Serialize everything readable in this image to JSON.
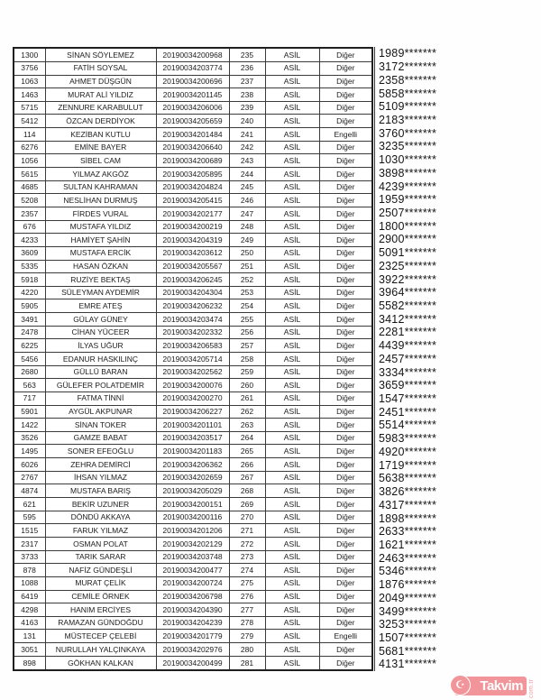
{
  "table": {
    "column_keys": [
      "order_no",
      "name",
      "application_no",
      "rank",
      "list_type",
      "category",
      "masked_id"
    ],
    "rows": [
      [
        "1300",
        "SİNAN SÖYLEMEZ",
        "20190034200968",
        "235",
        "ASİL",
        "Diğer",
        "1989*******"
      ],
      [
        "3756",
        "FATİH SOYSAL",
        "20190034203774",
        "236",
        "ASİL",
        "Diğer",
        "3172*******"
      ],
      [
        "1063",
        "AHMET DÜŞGÜN",
        "20190034200696",
        "237",
        "ASİL",
        "Diğer",
        "2358*******"
      ],
      [
        "1463",
        "MURAT ALİ YILDIZ",
        "20190034201145",
        "238",
        "ASİL",
        "Diğer",
        "5858*******"
      ],
      [
        "5715",
        "ZENNURE KARABULUT",
        "20190034206006",
        "239",
        "ASİL",
        "Diğer",
        "5109*******"
      ],
      [
        "5412",
        "ÖZCAN DERDİYOK",
        "20190034205659",
        "240",
        "ASİL",
        "Diğer",
        "2183*******"
      ],
      [
        "114",
        "KEZİBAN KUTLU",
        "20190034201484",
        "241",
        "ASİL",
        "Engelli",
        "3760*******"
      ],
      [
        "6276",
        "EMİNE BAYER",
        "20190034206640",
        "242",
        "ASİL",
        "Diğer",
        "3235*******"
      ],
      [
        "1056",
        "SİBEL CAM",
        "20190034200689",
        "243",
        "ASİL",
        "Diğer",
        "1030*******"
      ],
      [
        "5615",
        "YILMAZ AKGÖZ",
        "20190034205895",
        "244",
        "ASİL",
        "Diğer",
        "3898*******"
      ],
      [
        "4685",
        "SULTAN KAHRAMAN",
        "20190034204824",
        "245",
        "ASİL",
        "Diğer",
        "4239*******"
      ],
      [
        "5208",
        "NESLİHAN DURMUŞ",
        "20190034205415",
        "246",
        "ASİL",
        "Diğer",
        "1959*******"
      ],
      [
        "2357",
        "FİRDES VURAL",
        "20190034202177",
        "247",
        "ASİL",
        "Diğer",
        "2507*******"
      ],
      [
        "676",
        "MUSTAFA YILDIZ",
        "20190034200219",
        "248",
        "ASİL",
        "Diğer",
        "1800*******"
      ],
      [
        "4233",
        "HAMİYET ŞAHİN",
        "20190034204319",
        "249",
        "ASİL",
        "Diğer",
        "2900*******"
      ],
      [
        "3609",
        "MUSTAFA ERCİK",
        "20190034203612",
        "250",
        "ASİL",
        "Diğer",
        "5091*******"
      ],
      [
        "5335",
        "HASAN ÖZKAN",
        "20190034205567",
        "251",
        "ASİL",
        "Diğer",
        "2325*******"
      ],
      [
        "5918",
        "RUZİYE BEKTAŞ",
        "20190034206245",
        "252",
        "ASİL",
        "Diğer",
        "3922*******"
      ],
      [
        "4220",
        "SÜLEYMAN AYDEMİR",
        "20190034204304",
        "253",
        "ASİL",
        "Diğer",
        "3964*******"
      ],
      [
        "5905",
        "EMRE ATEŞ",
        "20190034206232",
        "254",
        "ASİL",
        "Diğer",
        "5582*******"
      ],
      [
        "3491",
        "GÜLAY GÜNEY",
        "20190034203474",
        "255",
        "ASİL",
        "Diğer",
        "3412*******"
      ],
      [
        "2478",
        "CİHAN YÜCEER",
        "20190034202332",
        "256",
        "ASİL",
        "Diğer",
        "2281*******"
      ],
      [
        "6225",
        "İLYAS UĞUR",
        "20190034206583",
        "257",
        "ASİL",
        "Diğer",
        "4439*******"
      ],
      [
        "5456",
        "EDANUR HASKILINÇ",
        "20190034205714",
        "258",
        "ASİL",
        "Diğer",
        "2457*******"
      ],
      [
        "2680",
        "GÜLLÜ BARAN",
        "20190034202562",
        "259",
        "ASİL",
        "Diğer",
        "3334*******"
      ],
      [
        "563",
        "GÜLEFER POLATDEMİR",
        "20190034200076",
        "260",
        "ASİL",
        "Diğer",
        "3659*******"
      ],
      [
        "717",
        "FATMA TİNNİ",
        "20190034200270",
        "261",
        "ASİL",
        "Diğer",
        "1547*******"
      ],
      [
        "5901",
        "AYGÜL AKPUNAR",
        "20190034206227",
        "262",
        "ASİL",
        "Diğer",
        "2451*******"
      ],
      [
        "1422",
        "SİNAN TOKER",
        "20190034201101",
        "263",
        "ASİL",
        "Diğer",
        "5514*******"
      ],
      [
        "3526",
        "GAMZE BABAT",
        "20190034203517",
        "264",
        "ASİL",
        "Diğer",
        "5983*******"
      ],
      [
        "1495",
        "SONER EFEOĞLU",
        "20190034201183",
        "265",
        "ASİL",
        "Diğer",
        "4920*******"
      ],
      [
        "6026",
        "ZEHRA DEMİRCİ",
        "20190034206362",
        "266",
        "ASİL",
        "Diğer",
        "1719*******"
      ],
      [
        "2767",
        "İHSAN YILMAZ",
        "20190034202659",
        "267",
        "ASİL",
        "Diğer",
        "5638*******"
      ],
      [
        "4874",
        "MUSTAFA BARIŞ",
        "20190034205029",
        "268",
        "ASİL",
        "Diğer",
        "3826*******"
      ],
      [
        "621",
        "BEKİR UZUNER",
        "20190034200151",
        "269",
        "ASİL",
        "Diğer",
        "4317*******"
      ],
      [
        "595",
        "DÖNDÜ AKKAYA",
        "20190034200116",
        "270",
        "ASİL",
        "Diğer",
        "1898*******"
      ],
      [
        "1515",
        "FARUK YILMAZ",
        "20190034201206",
        "271",
        "ASİL",
        "Diğer",
        "2633*******"
      ],
      [
        "2317",
        "OSMAN POLAT",
        "20190034202129",
        "272",
        "ASİL",
        "Diğer",
        "1621*******"
      ],
      [
        "3733",
        "TARIK SARAR",
        "20190034203748",
        "273",
        "ASİL",
        "Diğer",
        "2463*******"
      ],
      [
        "878",
        "NAFİZ GÜNDEŞLİ",
        "20190034200477",
        "274",
        "ASİL",
        "Diğer",
        "5346*******"
      ],
      [
        "1088",
        "MURAT ÇELİK",
        "20190034200724",
        "275",
        "ASİL",
        "Diğer",
        "1876*******"
      ],
      [
        "6419",
        "CEMİLE ÖRNEK",
        "20190034206798",
        "276",
        "ASİL",
        "Diğer",
        "2049*******"
      ],
      [
        "4298",
        "HANIM ERCİYES",
        "20190034204390",
        "277",
        "ASİL",
        "Diğer",
        "3499*******"
      ],
      [
        "4163",
        "RAMAZAN GÜNDOĞDU",
        "20190034204239",
        "278",
        "ASİL",
        "Diğer",
        "3253*******"
      ],
      [
        "131",
        "MÜSTECEP ÇELEBİ",
        "20190034201779",
        "279",
        "ASİL",
        "Engelli",
        "1507*******"
      ],
      [
        "3051",
        "NURULLAH YALÇINKAYA",
        "20190034202976",
        "280",
        "ASİL",
        "Diğer",
        "5681*******"
      ],
      [
        "898",
        "GÖKHAN KALKAN",
        "20190034200499",
        "281",
        "ASİL",
        "Diğer",
        "4131*******"
      ]
    ]
  },
  "watermark": {
    "brand": "Takvim",
    "suffix": "com.tr",
    "brand_color": "#e30613",
    "crescent_glyph": "☪"
  }
}
